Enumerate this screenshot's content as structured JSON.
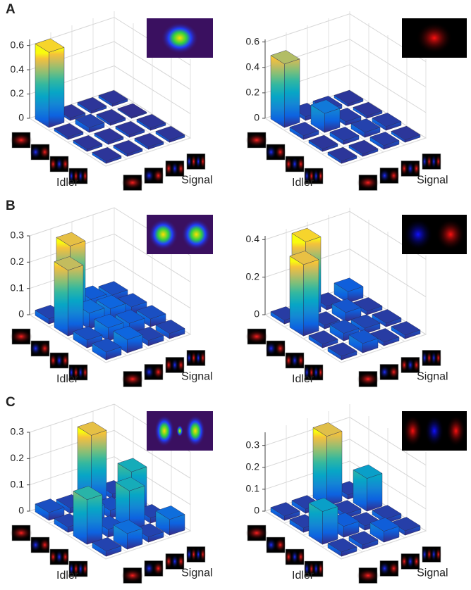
{
  "chart_data": [
    {
      "type": "bar3d",
      "title": "A",
      "idler_label": "Idler",
      "signal_label": "Signal",
      "matrix": [
        [
          0.62,
          0.02,
          0.02,
          0.02
        ],
        [
          0.02,
          0.04,
          0.02,
          0.01
        ],
        [
          0.02,
          0.02,
          0.02,
          0.02
        ],
        [
          0.02,
          0.02,
          0.02,
          0.02
        ]
      ],
      "zlim": [
        0,
        0.65
      ],
      "zticks": [
        0,
        0.2,
        0.4,
        0.6
      ],
      "grid": true
    },
    {
      "type": "bar3d",
      "idler_label": "Idler",
      "signal_label": "Signal",
      "matrix": [
        [
          0.5,
          0.03,
          0.03,
          0.02
        ],
        [
          0.03,
          0.15,
          0.03,
          0.02
        ],
        [
          0.02,
          0.03,
          0.04,
          0.03
        ],
        [
          0.02,
          0.02,
          0.03,
          0.02
        ]
      ],
      "zlim": [
        0,
        0.62
      ],
      "zticks": [
        0,
        0.2,
        0.4,
        0.6
      ],
      "grid": true
    },
    {
      "type": "bar3d",
      "title": "B",
      "idler_label": "Idler",
      "signal_label": "Signal",
      "matrix": [
        [
          0.02,
          0.27,
          0.04,
          0.03
        ],
        [
          0.25,
          0.06,
          0.05,
          0.03
        ],
        [
          0.03,
          0.05,
          0.04,
          0.03
        ],
        [
          0.03,
          0.05,
          0.02,
          0.02
        ]
      ],
      "zlim": [
        0,
        0.3
      ],
      "zticks": [
        0,
        0.1,
        0.2,
        0.3
      ],
      "grid": true
    },
    {
      "type": "bar3d",
      "idler_label": "Idler",
      "signal_label": "Signal",
      "matrix": [
        [
          0.02,
          0.4,
          0.02,
          0.06
        ],
        [
          0.38,
          0.02,
          0.05,
          0.02
        ],
        [
          0.02,
          0.04,
          0.03,
          0.02
        ],
        [
          0.02,
          0.05,
          0.02,
          0.02
        ]
      ],
      "zlim": [
        0,
        0.42
      ],
      "zticks": [
        0,
        0.2,
        0.4
      ],
      "grid": true
    },
    {
      "type": "bar3d",
      "title": "C",
      "idler_label": "Idler",
      "signal_label": "Signal",
      "matrix": [
        [
          0.03,
          0.02,
          0.27,
          0.02
        ],
        [
          0.02,
          0.06,
          0.03,
          0.15
        ],
        [
          0.17,
          0.03,
          0.15,
          0.02
        ],
        [
          0.02,
          0.06,
          0.02,
          0.06
        ]
      ],
      "zlim": [
        0,
        0.3
      ],
      "zticks": [
        0,
        0.1,
        0.2,
        0.3
      ],
      "grid": true
    },
    {
      "type": "bar3d",
      "idler_label": "Idler",
      "signal_label": "Signal",
      "matrix": [
        [
          0.02,
          0.02,
          0.32,
          0.02
        ],
        [
          0.02,
          0.02,
          0.02,
          0.15
        ],
        [
          0.15,
          0.05,
          0.02,
          0.02
        ],
        [
          0.02,
          0.02,
          0.05,
          0.02
        ]
      ],
      "zlim": [
        0,
        0.36
      ],
      "zticks": [
        0,
        0.1,
        0.2,
        0.3
      ],
      "grid": true
    }
  ]
}
